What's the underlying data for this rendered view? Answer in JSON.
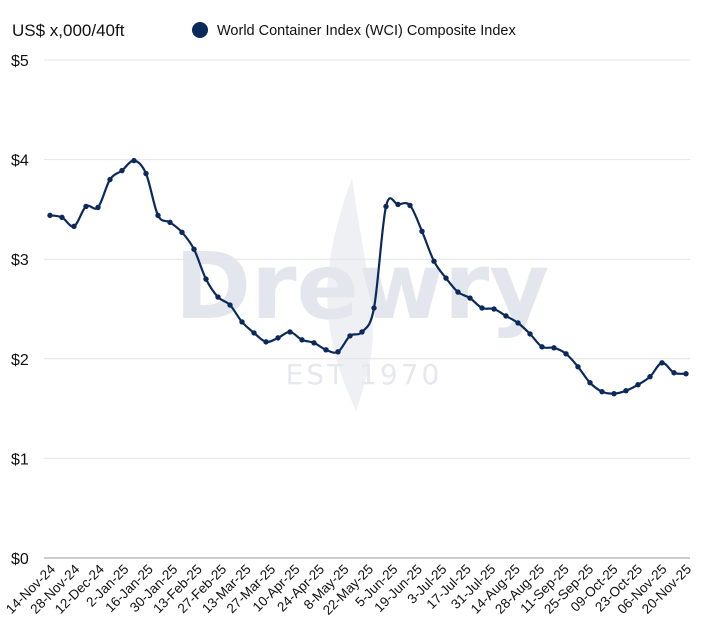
{
  "watermark": {
    "logo_text": "Drewry",
    "tagline": "EST 1970"
  },
  "chart_data": {
    "type": "line",
    "title": "",
    "ylabel": "US$ x,000/40ft",
    "xlabel": "",
    "ylim": [
      0,
      5
    ],
    "y_ticks": [
      0,
      1,
      2,
      3,
      4,
      5
    ],
    "y_tick_labels": [
      "$0",
      "$1",
      "$2",
      "$3",
      "$4",
      "$5"
    ],
    "x_tick_labels": [
      "14-Nov-24",
      "28-Nov-24",
      "12-Dec-24",
      "2-Jan-25",
      "16-Jan-25",
      "30-Jan-25",
      "13-Feb-25",
      "27-Feb-25",
      "13-Mar-25",
      "27-Mar-25",
      "10-Apr-25",
      "24-Apr-25",
      "8-May-25",
      "22-May-25",
      "5-Jun-25",
      "19-Jun-25",
      "3-Jul-25",
      "17-Jul-25",
      "31-Jul-25",
      "14-Aug-25",
      "28-Aug-25",
      "11-Sep-25",
      "25-Sep-25",
      "09-Oct-25",
      "23-Oct-25",
      "06-Nov-25",
      "20-Nov-25"
    ],
    "grid": "horizontal",
    "legend_position": "top",
    "series": [
      {
        "name": "World Container Index (WCI) Composite Index",
        "color": "#0b2a5b",
        "values": [
          3.44,
          3.42,
          3.33,
          3.53,
          3.52,
          3.8,
          3.89,
          3.99,
          3.86,
          3.44,
          3.37,
          3.27,
          3.1,
          2.8,
          2.62,
          2.54,
          2.37,
          2.26,
          2.17,
          2.21,
          2.27,
          2.19,
          2.16,
          2.09,
          2.07,
          2.23,
          2.27,
          2.51,
          3.53,
          3.55,
          3.54,
          3.28,
          2.98,
          2.81,
          2.67,
          2.61,
          2.51,
          2.5,
          2.43,
          2.36,
          2.25,
          2.12,
          2.11,
          2.05,
          1.92,
          1.76,
          1.67,
          1.65,
          1.68,
          1.74,
          1.82,
          1.96,
          1.86,
          1.85
        ]
      }
    ]
  }
}
